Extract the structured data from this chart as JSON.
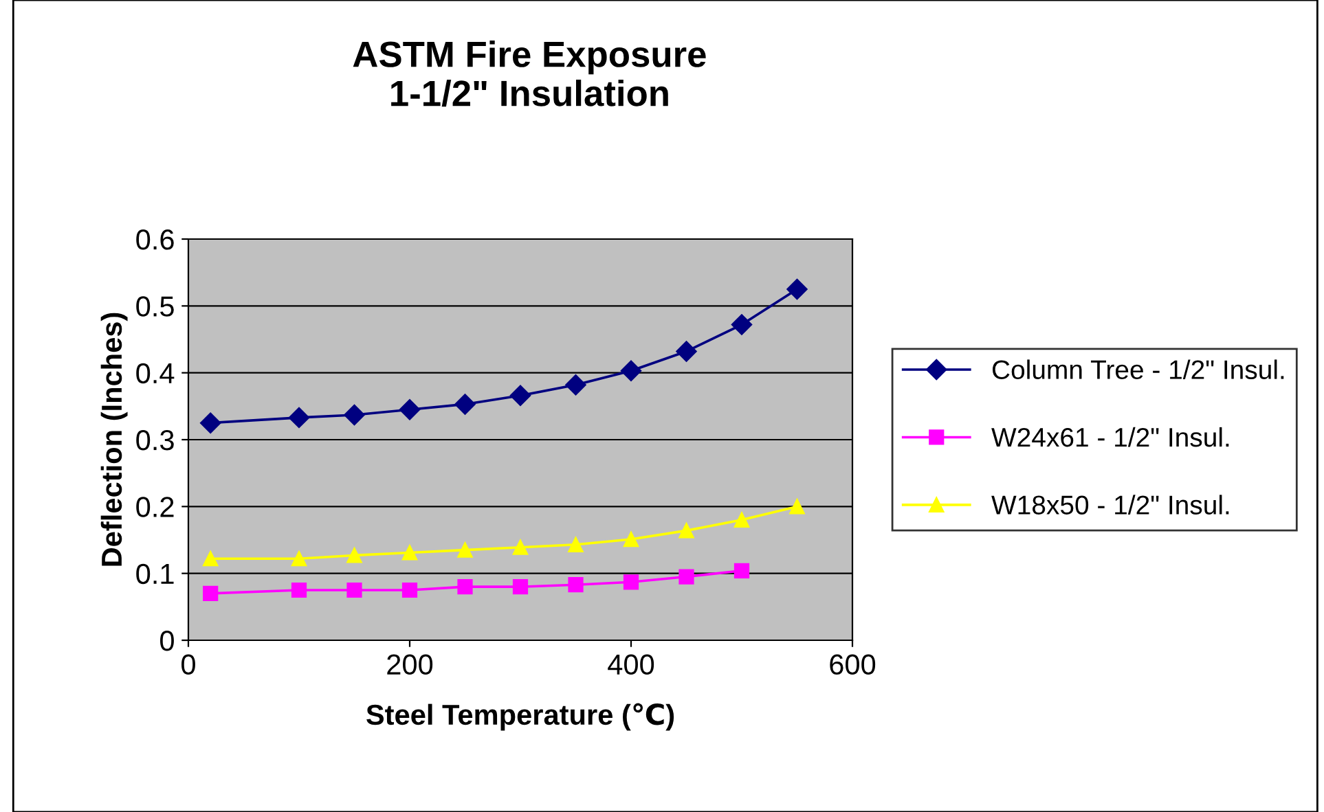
{
  "chart_data": {
    "type": "line",
    "title": "ASTM Fire Exposure\n1-1/2\" Insulation",
    "xlabel": "Steel Temperature (℃)",
    "ylabel": "Deflection (Inches)",
    "xlim": [
      0,
      600
    ],
    "xticks": [
      0,
      200,
      400,
      600
    ],
    "ylim": [
      0,
      0.6
    ],
    "yticks": [
      0,
      0.1,
      0.2,
      0.3,
      0.4,
      0.5,
      0.6
    ],
    "grid": "y",
    "legend": "right",
    "series": [
      {
        "name": "Column Tree - 1/2\" Insul.",
        "color": "#000080",
        "marker": "diamond",
        "x": [
          20,
          100,
          150,
          200,
          250,
          300,
          350,
          400,
          450,
          500,
          550
        ],
        "values": [
          0.325,
          0.333,
          0.337,
          0.345,
          0.353,
          0.366,
          0.382,
          0.403,
          0.432,
          0.472,
          0.525
        ]
      },
      {
        "name": "W24x61 - 1/2\" Insul.",
        "color": "#ff00ff",
        "marker": "square",
        "x": [
          20,
          100,
          150,
          200,
          250,
          300,
          350,
          400,
          450,
          500
        ],
        "values": [
          0.07,
          0.075,
          0.075,
          0.075,
          0.08,
          0.08,
          0.083,
          0.087,
          0.095,
          0.104
        ]
      },
      {
        "name": "W18x50 - 1/2\" Insul.",
        "color": "#ffff00",
        "marker": "triangle",
        "x": [
          20,
          100,
          150,
          200,
          250,
          300,
          350,
          400,
          450,
          500,
          550
        ],
        "values": [
          0.122,
          0.122,
          0.127,
          0.131,
          0.135,
          0.139,
          0.143,
          0.151,
          0.164,
          0.18,
          0.2
        ]
      }
    ]
  }
}
